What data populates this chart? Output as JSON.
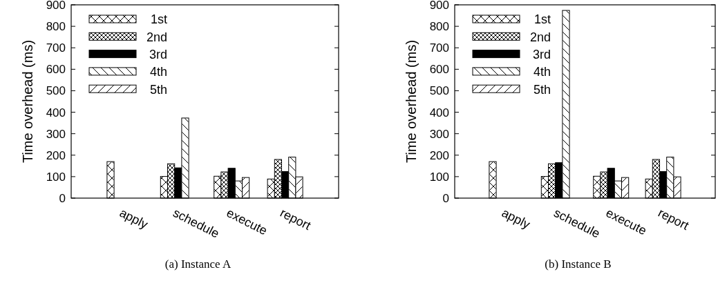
{
  "chart_data": [
    {
      "type": "bar",
      "ylabel": "Time overhead (ms)",
      "categories": [
        "apply",
        "schedule",
        "execute",
        "report"
      ],
      "ylim": [
        0,
        900
      ],
      "yticks": [
        0,
        100,
        200,
        300,
        400,
        500,
        600,
        700,
        800,
        900
      ],
      "legend": "top left",
      "grid": false,
      "annotations": [
        "(a) Instance A"
      ],
      "series": [
        {
          "name": "1st",
          "color": "#ffffff",
          "values": [
            170,
            101,
            102,
            89
          ]
        },
        {
          "name": "2nd",
          "color": "#ffffff",
          "values": [
            null,
            160,
            122,
            180
          ]
        },
        {
          "name": "3rd",
          "color": "#000000",
          "values": [
            null,
            141,
            139,
            124
          ]
        },
        {
          "name": "4th",
          "color": "#ffffff",
          "values": [
            null,
            373,
            80,
            191
          ]
        },
        {
          "name": "5th",
          "color": "#ffffff",
          "values": [
            null,
            null,
            96,
            99
          ]
        }
      ]
    },
    {
      "type": "bar",
      "ylabel": "Time overhead (ms)",
      "categories": [
        "apply",
        "schedule",
        "execute",
        "report"
      ],
      "ylim": [
        0,
        900
      ],
      "yticks": [
        0,
        100,
        200,
        300,
        400,
        500,
        600,
        700,
        800,
        900
      ],
      "legend": "top left",
      "grid": false,
      "annotations": [
        "(b) Instance B"
      ],
      "series": [
        {
          "name": "1st",
          "color": "#ffffff",
          "values": [
            170,
            101,
            102,
            89
          ]
        },
        {
          "name": "2nd",
          "color": "#ffffff",
          "values": [
            null,
            160,
            122,
            180
          ]
        },
        {
          "name": "3rd",
          "color": "#000000",
          "values": [
            null,
            165,
            139,
            124
          ]
        },
        {
          "name": "4th",
          "color": "#ffffff",
          "values": [
            null,
            874,
            80,
            191
          ]
        },
        {
          "name": "5th",
          "color": "#ffffff",
          "values": [
            null,
            null,
            96,
            99
          ]
        }
      ]
    }
  ]
}
